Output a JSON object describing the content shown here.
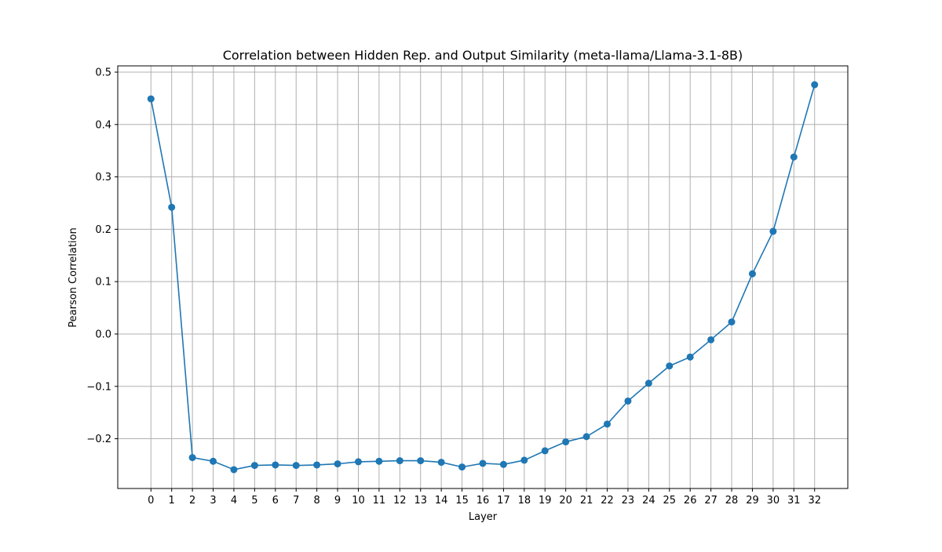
{
  "chart_data": {
    "type": "line",
    "title": "Correlation between Hidden Rep. and Output Similarity (meta-llama/Llama-3.1-8B)",
    "xlabel": "Layer",
    "ylabel": "Pearson Correlation",
    "x": [
      0,
      1,
      2,
      3,
      4,
      5,
      6,
      7,
      8,
      9,
      10,
      11,
      12,
      13,
      14,
      15,
      16,
      17,
      18,
      19,
      20,
      21,
      22,
      23,
      24,
      25,
      26,
      27,
      28,
      29,
      30,
      31,
      32
    ],
    "xticks": [
      "0",
      "1",
      "2",
      "3",
      "4",
      "5",
      "6",
      "7",
      "8",
      "9",
      "10",
      "11",
      "12",
      "13",
      "14",
      "15",
      "16",
      "17",
      "18",
      "19",
      "20",
      "21",
      "22",
      "23",
      "24",
      "25",
      "26",
      "27",
      "28",
      "29",
      "30",
      "31",
      "32"
    ],
    "yticks": [
      "−0.2",
      "−0.1",
      "0.0",
      "0.1",
      "0.2",
      "0.3",
      "0.4",
      "0.5"
    ],
    "ytick_values": [
      -0.2,
      -0.1,
      0.0,
      0.1,
      0.2,
      0.3,
      0.4,
      0.5
    ],
    "xlim": [
      -1.6,
      33.6
    ],
    "ylim": [
      -0.295,
      0.512
    ],
    "grid": true,
    "series": [
      {
        "color": "#1f77b4",
        "marker": "circle",
        "values": [
          0.449,
          0.242,
          -0.236,
          -0.243,
          -0.259,
          -0.251,
          -0.25,
          -0.251,
          -0.25,
          -0.248,
          -0.244,
          -0.243,
          -0.242,
          -0.242,
          -0.245,
          -0.254,
          -0.247,
          -0.249,
          -0.241,
          -0.223,
          -0.206,
          -0.196,
          -0.172,
          -0.128,
          -0.094,
          -0.061,
          -0.044,
          -0.011,
          0.023,
          0.115,
          0.196,
          0.338,
          0.476
        ]
      }
    ]
  }
}
